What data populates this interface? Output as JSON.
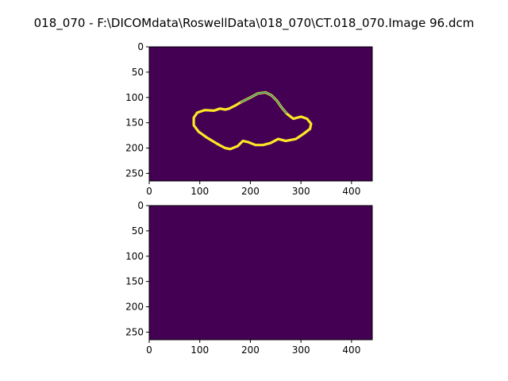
{
  "figure": {
    "title": "018_070 - F:\\DICOMdata\\RoswellData\\018_070\\CT.018_070.Image 96.dcm"
  },
  "chart_data": [
    {
      "type": "heatmap",
      "title": "",
      "xlabel": "",
      "ylabel": "",
      "xlim": [
        0,
        441
      ],
      "ylim": [
        265,
        0
      ],
      "xticks": [
        "0",
        "100",
        "200",
        "300",
        "400"
      ],
      "yticks": [
        "0",
        "50",
        "100",
        "150",
        "200",
        "250"
      ],
      "colormap": "viridis",
      "background_color": "#440154",
      "contour_colors": {
        "thin": "#2f8c8c",
        "thick": "#fde725"
      },
      "contour": [
        [
          180,
          110
        ],
        [
          200,
          100
        ],
        [
          215,
          92
        ],
        [
          230,
          90
        ],
        [
          242,
          96
        ],
        [
          252,
          106
        ],
        [
          262,
          120
        ],
        [
          272,
          132
        ],
        [
          285,
          142
        ],
        [
          300,
          138
        ],
        [
          312,
          142
        ],
        [
          320,
          152
        ],
        [
          318,
          162
        ],
        [
          305,
          172
        ],
        [
          290,
          182
        ],
        [
          270,
          186
        ],
        [
          255,
          182
        ],
        [
          240,
          190
        ],
        [
          225,
          194
        ],
        [
          210,
          194
        ],
        [
          195,
          188
        ],
        [
          185,
          186
        ],
        [
          175,
          196
        ],
        [
          160,
          202
        ],
        [
          150,
          200
        ],
        [
          135,
          192
        ],
        [
          115,
          180
        ],
        [
          98,
          168
        ],
        [
          88,
          155
        ],
        [
          88,
          140
        ],
        [
          95,
          130
        ],
        [
          110,
          125
        ],
        [
          128,
          126
        ],
        [
          140,
          122
        ],
        [
          150,
          124
        ],
        [
          158,
          122
        ],
        [
          170,
          116
        ],
        [
          180,
          110
        ]
      ]
    },
    {
      "type": "heatmap",
      "title": "",
      "xlabel": "",
      "ylabel": "",
      "xlim": [
        0,
        441
      ],
      "ylim": [
        265,
        0
      ],
      "xticks": [
        "0",
        "100",
        "200",
        "300",
        "400"
      ],
      "yticks": [
        "0",
        "50",
        "100",
        "150",
        "200",
        "250"
      ],
      "colormap": "viridis",
      "background_color": "#440154",
      "contour": []
    }
  ]
}
